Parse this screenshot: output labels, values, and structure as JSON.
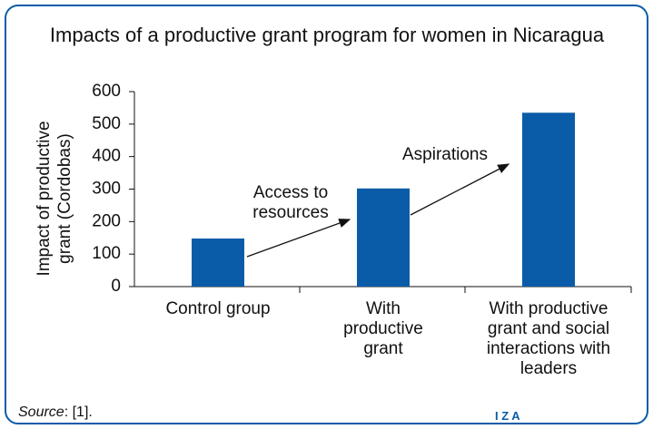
{
  "chart_data": {
    "type": "bar",
    "title": "Impacts of a productive grant program for women in Nicaragua",
    "y_label": "Impact of productive grant (Cordobas)",
    "categories": [
      "Control group",
      "With productive grant",
      "With productive grant and social interactions with leaders"
    ],
    "values": [
      148,
      302,
      535
    ],
    "color": "#0a5ca8",
    "ylim": [
      0,
      600
    ],
    "yticks": [
      0,
      100,
      200,
      300,
      400,
      500,
      600
    ],
    "grid": false,
    "annotations": [
      "Access to resources",
      "Aspirations"
    ],
    "source_label": "Source",
    "source_text": ": [1].",
    "logo": "I Z A"
  }
}
